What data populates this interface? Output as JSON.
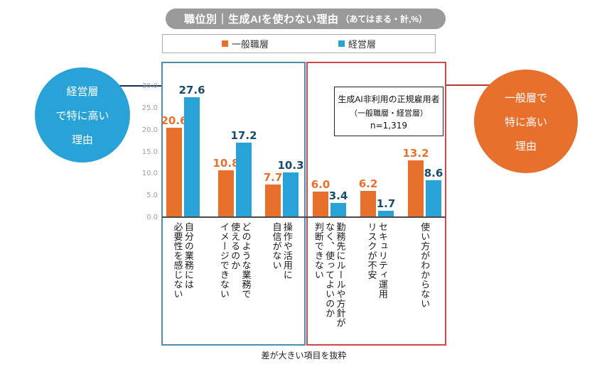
{
  "title": {
    "main": "職位別｜生成AIを使わない理由",
    "suffix": "（あてはまる・計,%）"
  },
  "legend": {
    "items": [
      {
        "label": "一般職層",
        "color": "#e7702d"
      },
      {
        "label": "経営層",
        "color": "#29a3d7"
      }
    ]
  },
  "callouts": {
    "left": {
      "lines": [
        "経営層",
        "で特に高い",
        "理由"
      ],
      "color": "#29a3d7"
    },
    "right": {
      "lines": [
        "一般層で",
        "特に高い",
        "理由"
      ],
      "color": "#e7702d"
    }
  },
  "annotation": {
    "line1": "生成AI非利用の正規雇用者",
    "line2": "（一般職層・経営層）",
    "line3": "n=1,319"
  },
  "caption": "差が大きい項目を抜粋",
  "chart_data": {
    "type": "bar",
    "title": "職位別｜生成AIを使わない理由（あてはまる・計,%）",
    "categories": [
      "自分の業務には\n必要性を感じない",
      "どのような業務で\n使えるのか\nイメージできない",
      "操作や活用に\n自信がない",
      "勤務先にルールや方針が\nなく、使ってよいのか\n判断できない",
      "セキュリティ運用\nリスクが不安",
      "使い方がわからない"
    ],
    "series": [
      {
        "name": "一般職層",
        "color": "#e7702d",
        "label_color": "#e7702d",
        "values": [
          20.6,
          10.8,
          7.7,
          6.0,
          6.2,
          13.2
        ]
      },
      {
        "name": "経営層",
        "color": "#29a3d7",
        "label_color": "#1a4c6b",
        "values": [
          27.6,
          17.2,
          10.3,
          3.4,
          1.7,
          8.6
        ]
      }
    ],
    "ylim": [
      0,
      30
    ],
    "ytick_labels": [
      "0.0",
      "5.0",
      "10.0",
      "15.0",
      "20.0",
      "25.0",
      "30.0"
    ],
    "grid": false,
    "legend_position": "top",
    "blue_box_groups": [
      0,
      1,
      2
    ],
    "red_box_groups": [
      3,
      4,
      5
    ]
  }
}
